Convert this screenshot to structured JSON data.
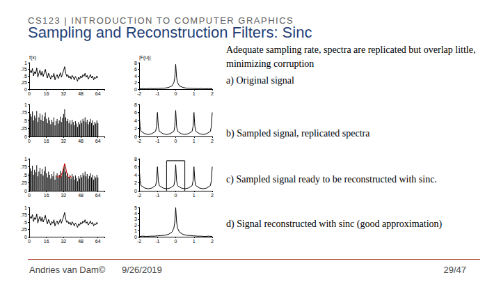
{
  "slide": {
    "header": "CS123 | INTRODUCTION TO COMPUTER GRAPHICS",
    "title": "Sampling and Reconstruction Filters: Sinc",
    "description": "Adequate sampling rate, spectra are replicated but overlap little, minimizing corruption",
    "captions": [
      "a) Original signal",
      "b) Sampled signal, replicated spectra",
      "c) Sampled signal ready to be reconstructed with sinc.",
      "d) Signal reconstructed with sinc (good approximation)"
    ],
    "footer": {
      "author": "Andries van Dam©",
      "date": "9/26/2019",
      "page": "29/47"
    }
  },
  "chart_data": [
    {
      "type": "line",
      "ylabel": "f(x)",
      "grid": false,
      "xlim": [
        0,
        70
      ],
      "xticks": [
        0,
        16,
        32,
        48,
        64
      ],
      "ylim": [
        0,
        1
      ],
      "yticks": [
        0,
        {
          "value": 0.25,
          "label": ".25"
        },
        {
          "value": 0.5,
          "label": ".5"
        },
        {
          "value": 0.75,
          "label": ".75"
        },
        1
      ],
      "series": [
        {
          "type": "line",
          "color": "#000000",
          "x": [
            0,
            1,
            2,
            3,
            4,
            5,
            6,
            7,
            8,
            9,
            10,
            11,
            12,
            13,
            14,
            15,
            16,
            17,
            18,
            19,
            20,
            21,
            22,
            23,
            24,
            25,
            26,
            27,
            28,
            29,
            30,
            31,
            32,
            33,
            34,
            35,
            36,
            37,
            38,
            39,
            40,
            41,
            42,
            43,
            44,
            45,
            46,
            47,
            48,
            49,
            50,
            51,
            52,
            53,
            54,
            55,
            56,
            57,
            58,
            59,
            60,
            61,
            62,
            63,
            64
          ],
          "values": [
            0.55,
            0.7,
            0.62,
            0.78,
            0.5,
            0.66,
            0.58,
            0.8,
            0.45,
            0.6,
            0.72,
            0.52,
            0.68,
            0.48,
            0.62,
            0.75,
            0.55,
            0.42,
            0.6,
            0.5,
            0.38,
            0.52,
            0.45,
            0.6,
            0.35,
            0.48,
            0.55,
            0.4,
            0.5,
            0.62,
            0.45,
            0.58,
            0.7,
            0.85,
            0.6,
            0.48,
            0.55,
            0.42,
            0.5,
            0.38,
            0.52,
            0.45,
            0.35,
            0.48,
            0.4,
            0.3,
            0.45,
            0.38,
            0.5,
            0.42,
            0.55,
            0.48,
            0.6,
            0.45,
            0.52,
            0.38,
            0.46,
            0.55,
            0.42,
            0.5,
            0.35,
            0.45,
            0.4,
            0.5,
            0.42
          ]
        }
      ]
    },
    {
      "type": "line",
      "ylabel": "|F(u)|",
      "grid": false,
      "xlim": [
        -2,
        2
      ],
      "xticks": [
        -2,
        -1,
        0,
        1,
        2
      ],
      "ylim": [
        0,
        8
      ],
      "yticks": [
        0,
        2,
        4,
        6,
        8
      ],
      "series": [
        {
          "type": "line",
          "color": "#000000",
          "x": [
            -2,
            -1.8,
            -1.6,
            -1.4,
            -1.2,
            -1,
            -0.8,
            -0.6,
            -0.4,
            -0.2,
            -0.1,
            -0.05,
            0,
            0.05,
            0.1,
            0.2,
            0.4,
            0.6,
            0.8,
            1,
            1.2,
            1.4,
            1.6,
            1.8,
            2
          ],
          "values": [
            0.1,
            0.15,
            0.1,
            0.2,
            0.15,
            0.2,
            0.25,
            0.3,
            0.5,
            1,
            2,
            3.5,
            7.5,
            3.5,
            2,
            1,
            0.5,
            0.3,
            0.25,
            0.2,
            0.15,
            0.2,
            0.1,
            0.15,
            0.1
          ]
        }
      ]
    },
    {
      "type": "bar",
      "grid": false,
      "xlim": [
        0,
        70
      ],
      "xticks": [
        0,
        16,
        32,
        48,
        64
      ],
      "ylim": [
        0,
        1
      ],
      "yticks": [
        0,
        {
          "value": 0.25,
          "label": ".25"
        },
        {
          "value": 0.5,
          "label": ".5"
        },
        {
          "value": 0.75,
          "label": ".75"
        },
        1
      ],
      "series": [
        {
          "type": "bar",
          "color": "#000000",
          "x": [
            0,
            1,
            2,
            3,
            4,
            5,
            6,
            7,
            8,
            9,
            10,
            11,
            12,
            13,
            14,
            15,
            16,
            17,
            18,
            19,
            20,
            21,
            22,
            23,
            24,
            25,
            26,
            27,
            28,
            29,
            30,
            31,
            32,
            33,
            34,
            35,
            36,
            37,
            38,
            39,
            40,
            41,
            42,
            43,
            44,
            45,
            46,
            47,
            48,
            49,
            50,
            51,
            52,
            53,
            54,
            55,
            56,
            57,
            58,
            59,
            60,
            61,
            62,
            63,
            64
          ],
          "values": [
            0.55,
            0.7,
            0.62,
            0.78,
            0.5,
            0.66,
            0.58,
            0.8,
            0.45,
            0.6,
            0.72,
            0.52,
            0.68,
            0.48,
            0.62,
            0.75,
            0.55,
            0.42,
            0.6,
            0.5,
            0.38,
            0.52,
            0.45,
            0.6,
            0.35,
            0.48,
            0.55,
            0.4,
            0.5,
            0.62,
            0.45,
            0.58,
            0.7,
            0.85,
            0.6,
            0.48,
            0.55,
            0.42,
            0.5,
            0.38,
            0.52,
            0.45,
            0.35,
            0.48,
            0.4,
            0.3,
            0.45,
            0.38,
            0.5,
            0.42,
            0.55,
            0.48,
            0.6,
            0.45,
            0.52,
            0.38,
            0.46,
            0.55,
            0.42,
            0.5,
            0.35,
            0.45,
            0.4,
            0.5,
            0.42
          ]
        }
      ]
    },
    {
      "type": "line",
      "grid": false,
      "xlim": [
        -2,
        2
      ],
      "xticks": [
        -2,
        -1,
        0,
        1,
        2
      ],
      "ylim": [
        0,
        8
      ],
      "yticks": [
        0,
        2,
        4,
        6,
        8
      ],
      "series": [
        {
          "type": "line",
          "color": "#000000",
          "x": [
            -2,
            -1.95,
            -1.9,
            -1.7,
            -1.5,
            -1.3,
            -1.1,
            -1.05,
            -1,
            -0.95,
            -0.9,
            -0.7,
            -0.5,
            -0.3,
            -0.1,
            -0.05,
            0,
            0.05,
            0.1,
            0.3,
            0.5,
            0.7,
            0.9,
            0.95,
            1,
            1.05,
            1.1,
            1.3,
            1.5,
            1.7,
            1.9,
            1.95,
            2
          ],
          "values": [
            6,
            2.5,
            1.3,
            0.7,
            0.5,
            0.7,
            1.3,
            2.5,
            6,
            2.5,
            1.3,
            0.7,
            0.5,
            0.7,
            1.3,
            2.5,
            6.5,
            2.5,
            1.3,
            0.7,
            0.5,
            0.7,
            1.3,
            2.5,
            6,
            2.5,
            1.3,
            0.7,
            0.5,
            0.7,
            1.3,
            2.5,
            6
          ]
        }
      ]
    },
    {
      "type": "bar",
      "grid": false,
      "xlim": [
        0,
        70
      ],
      "xticks": [
        0,
        16,
        32,
        48,
        64
      ],
      "ylim": [
        0,
        1
      ],
      "yticks": [
        0,
        {
          "value": 0.25,
          "label": ".25"
        },
        {
          "value": 0.5,
          "label": ".5"
        },
        {
          "value": 0.75,
          "label": ".75"
        },
        1
      ],
      "series": [
        {
          "type": "bar",
          "color": "#000000",
          "x": [
            0,
            1,
            2,
            3,
            4,
            5,
            6,
            7,
            8,
            9,
            10,
            11,
            12,
            13,
            14,
            15,
            16,
            17,
            18,
            19,
            20,
            21,
            22,
            23,
            24,
            25,
            26,
            27,
            28,
            29,
            30,
            31,
            32,
            33,
            34,
            35,
            36,
            37,
            38,
            39,
            40,
            41,
            42,
            43,
            44,
            45,
            46,
            47,
            48,
            49,
            50,
            51,
            52,
            53,
            54,
            55,
            56,
            57,
            58,
            59,
            60,
            61,
            62,
            63,
            64
          ],
          "values": [
            0.55,
            0.7,
            0.62,
            0.78,
            0.5,
            0.66,
            0.58,
            0.8,
            0.45,
            0.6,
            0.72,
            0.52,
            0.68,
            0.48,
            0.62,
            0.75,
            0.55,
            0.42,
            0.6,
            0.5,
            0.38,
            0.52,
            0.45,
            0.6,
            0.35,
            0.48,
            0.55,
            0.4,
            0.5,
            0.62,
            0.45,
            0.58,
            0.7,
            0.85,
            0.6,
            0.48,
            0.55,
            0.42,
            0.5,
            0.38,
            0.52,
            0.45,
            0.35,
            0.48,
            0.4,
            0.3,
            0.45,
            0.38,
            0.5,
            0.42,
            0.55,
            0.48,
            0.6,
            0.45,
            0.52,
            0.38,
            0.46,
            0.55,
            0.42,
            0.5,
            0.35,
            0.45,
            0.4,
            0.5,
            0.42
          ]
        },
        {
          "type": "line",
          "color": "#cc0000",
          "x": [
            26,
            27,
            28,
            29,
            30,
            31,
            32,
            33,
            34,
            35,
            36,
            37,
            38,
            39,
            40
          ],
          "values": [
            0.45,
            0.42,
            0.48,
            0.4,
            0.5,
            0.6,
            0.72,
            0.85,
            0.72,
            0.55,
            0.45,
            0.4,
            0.46,
            0.42,
            0.44
          ]
        }
      ]
    },
    {
      "type": "line",
      "grid": false,
      "xlim": [
        -2,
        2
      ],
      "xticks": [
        -2,
        -1,
        0,
        1,
        2
      ],
      "ylim": [
        0,
        8
      ],
      "yticks": [
        0,
        2,
        4,
        6,
        8
      ],
      "series": [
        {
          "type": "line",
          "color": "#000000",
          "x": [
            -2,
            -1.95,
            -1.9,
            -1.7,
            -1.5,
            -1.3,
            -1.1,
            -1.05,
            -1,
            -0.95,
            -0.9,
            -0.7,
            -0.5,
            -0.3,
            -0.1,
            -0.05,
            0,
            0.05,
            0.1,
            0.3,
            0.5,
            0.7,
            0.9,
            0.95,
            1,
            1.05,
            1.1,
            1.3,
            1.5,
            1.7,
            1.9,
            1.95,
            2
          ],
          "values": [
            6,
            2.5,
            1.3,
            0.7,
            0.5,
            0.7,
            1.3,
            2.5,
            6,
            2.5,
            1.3,
            0.7,
            0.5,
            0.7,
            1.3,
            2.5,
            6.5,
            2.5,
            1.3,
            0.7,
            0.5,
            0.7,
            1.3,
            2.5,
            6,
            2.5,
            1.3,
            0.7,
            0.5,
            0.7,
            1.3,
            2.5,
            6
          ]
        },
        {
          "type": "line",
          "color": "#000000",
          "x": [
            -0.5,
            -0.5,
            0.5,
            0.5
          ],
          "values": [
            0,
            7.5,
            7.5,
            0
          ]
        }
      ]
    },
    {
      "type": "line",
      "grid": false,
      "xlim": [
        0,
        70
      ],
      "xticks": [
        0,
        16,
        32,
        48,
        64
      ],
      "ylim": [
        0,
        1
      ],
      "yticks": [
        0,
        {
          "value": 0.25,
          "label": ".25"
        },
        {
          "value": 0.5,
          "label": ".5"
        },
        {
          "value": 0.75,
          "label": ".75"
        },
        1
      ],
      "series": [
        {
          "type": "line",
          "color": "#000000",
          "x": [
            0,
            1,
            2,
            3,
            4,
            5,
            6,
            7,
            8,
            9,
            10,
            11,
            12,
            13,
            14,
            15,
            16,
            17,
            18,
            19,
            20,
            21,
            22,
            23,
            24,
            25,
            26,
            27,
            28,
            29,
            30,
            31,
            32,
            33,
            34,
            35,
            36,
            37,
            38,
            39,
            40,
            41,
            42,
            43,
            44,
            45,
            46,
            47,
            48,
            49,
            50,
            51,
            52,
            53,
            54,
            55,
            56,
            57,
            58,
            59,
            60,
            61,
            62,
            63,
            64
          ],
          "values": [
            0.56,
            0.69,
            0.63,
            0.76,
            0.52,
            0.65,
            0.59,
            0.78,
            0.47,
            0.6,
            0.7,
            0.53,
            0.67,
            0.5,
            0.62,
            0.73,
            0.55,
            0.44,
            0.59,
            0.5,
            0.4,
            0.52,
            0.46,
            0.58,
            0.37,
            0.48,
            0.54,
            0.42,
            0.5,
            0.6,
            0.46,
            0.58,
            0.69,
            0.83,
            0.6,
            0.49,
            0.54,
            0.43,
            0.5,
            0.4,
            0.51,
            0.45,
            0.37,
            0.47,
            0.41,
            0.32,
            0.44,
            0.39,
            0.49,
            0.43,
            0.54,
            0.48,
            0.58,
            0.46,
            0.51,
            0.4,
            0.46,
            0.54,
            0.43,
            0.49,
            0.37,
            0.45,
            0.41,
            0.49,
            0.43
          ]
        }
      ]
    },
    {
      "type": "line",
      "grid": false,
      "xlim": [
        -2,
        2
      ],
      "xticks": [
        -2,
        -1,
        0,
        1,
        2
      ],
      "ylim": [
        0,
        5
      ],
      "yticks": [
        0,
        1,
        2,
        3,
        4,
        5
      ],
      "series": [
        {
          "type": "line",
          "color": "#000000",
          "x": [
            -2,
            -1.8,
            -1.6,
            -1.4,
            -1.2,
            -1,
            -0.8,
            -0.6,
            -0.4,
            -0.2,
            -0.1,
            -0.05,
            0,
            0.05,
            0.1,
            0.2,
            0.4,
            0.6,
            0.8,
            1,
            1.2,
            1.4,
            1.6,
            1.8,
            2
          ],
          "values": [
            0.05,
            0.1,
            0.05,
            0.1,
            0.1,
            0.15,
            0.2,
            0.25,
            0.4,
            0.8,
            1.5,
            2.5,
            5,
            2.5,
            1.5,
            0.8,
            0.4,
            0.25,
            0.2,
            0.15,
            0.1,
            0.1,
            0.05,
            0.1,
            0.05
          ]
        }
      ]
    }
  ]
}
